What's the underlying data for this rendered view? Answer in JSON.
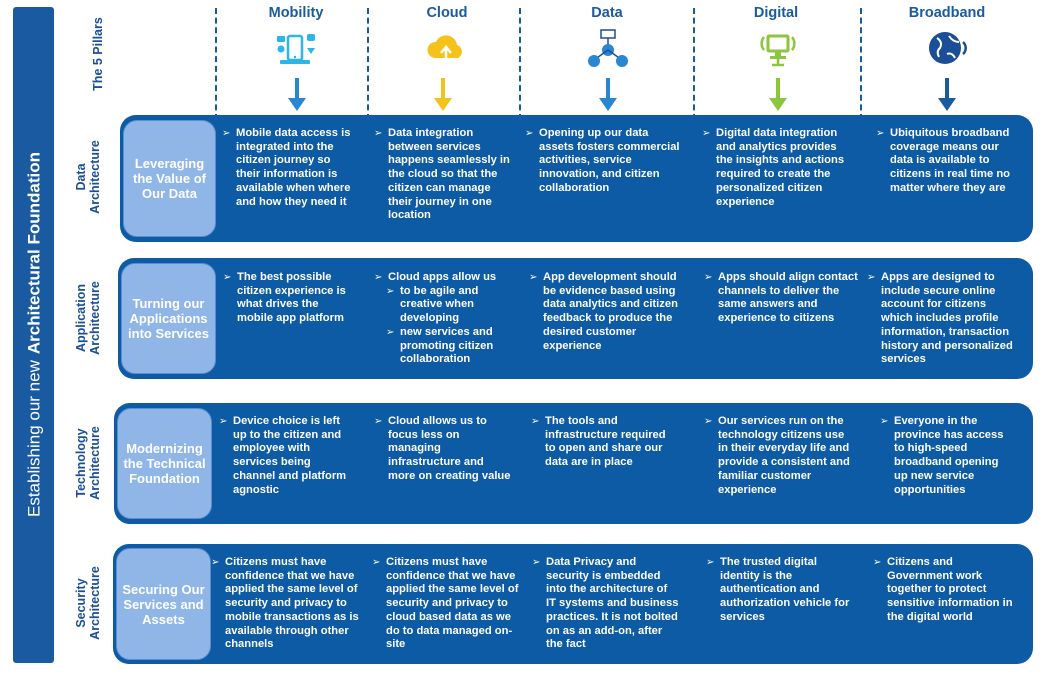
{
  "side_banner": {
    "prefix": "Establishing our new",
    "emphasis": "Architectural Foundation"
  },
  "pillars_label": "The 5 Pillars",
  "pillars": [
    {
      "title": "Mobility",
      "icon": "mobile-devices-icon",
      "arrow_color": "#2a86d0"
    },
    {
      "title": "Cloud",
      "icon": "cloud-upload-icon",
      "arrow_color": "#f2c31a"
    },
    {
      "title": "Data",
      "icon": "data-network-icon",
      "arrow_color": "#2a86d0"
    },
    {
      "title": "Digital",
      "icon": "digital-monitor-icon",
      "arrow_color": "#8cc63f"
    },
    {
      "title": "Broadband",
      "icon": "globe-signal-icon",
      "arrow_color": "#1a5aa0"
    }
  ],
  "rows": [
    {
      "label": [
        "Data",
        "Architecture"
      ],
      "pill": "Leveraging the Value of Our Data",
      "cells": [
        [
          [
            "Mobile data access is",
            "integrated into the",
            "citizen journey so",
            "their information  is",
            "available when where",
            "and how they need it"
          ]
        ],
        [
          [
            "Data integration",
            "between services",
            "happens seamlessly in",
            "the cloud so that the",
            "citizen can manage",
            "their journey in one",
            "location"
          ]
        ],
        [
          [
            "Opening up our data",
            "assets fosters commercial",
            "activities, service",
            "innovation, and citizen",
            "collaboration"
          ]
        ],
        [
          [
            "Digital data integration",
            " and  analytics provides",
            "the insights and actions",
            "required to create the",
            "personalized citizen",
            "experience"
          ]
        ],
        [
          [
            "Ubiquitous broadband",
            "coverage means our",
            "data is available to",
            "citizens in real time no",
            "matter where they are"
          ]
        ]
      ]
    },
    {
      "label": [
        "Application",
        "Architecture"
      ],
      "pill": "Turning our Applications into Services",
      "cells": [
        [
          [
            "The best possible",
            "citizen experience is",
            "what drives the",
            "mobile app platform"
          ]
        ],
        [
          [
            "Cloud apps allow us"
          ],
          [
            "to be agile and",
            "creative when",
            "developing"
          ],
          [
            "new services and",
            "promoting citizen",
            "collaboration"
          ]
        ],
        [
          [
            "App development should",
            "be evidence based using",
            "data analytics and citizen",
            "feedback to produce the",
            "desired customer",
            "experience"
          ]
        ],
        [
          [
            "Apps should align contact",
            "channels to deliver the",
            "same answers and",
            "experience to citizens"
          ]
        ],
        [
          [
            "Apps are designed  to",
            "include secure online",
            "account for citizens",
            "which includes profile",
            "information, transaction",
            "history and personalized",
            "services"
          ]
        ]
      ]
    },
    {
      "label": [
        "Technology",
        "Architecture"
      ],
      "pill": "Modernizing the Technical Foundation",
      "cells": [
        [
          [
            "Device choice is left",
            "up to the citizen and",
            "employee with",
            "services being",
            "channel and platform",
            "agnostic"
          ]
        ],
        [
          [
            "Cloud allows us to",
            "focus less on",
            "managing",
            "infrastructure and",
            "more on creating value"
          ]
        ],
        [
          [
            "The tools and",
            "infrastructure required",
            "to open and share our",
            "data are in place"
          ]
        ],
        [
          [
            "Our services run on the",
            "technology citizens use",
            "in their everyday life and",
            "provide a consistent and",
            "familiar customer",
            "experience"
          ]
        ],
        [
          [
            "Everyone in the",
            "province has access",
            "to high-speed",
            "broadband opening",
            "up new service",
            "opportunities"
          ]
        ]
      ]
    },
    {
      "label": [
        "Security",
        "Architecture"
      ],
      "pill": "Securing Our Services and Assets",
      "cells": [
        [
          [
            "Citizens must have",
            "confidence that we have",
            "applied the same level of",
            "security and privacy to",
            "mobile transactions as is",
            "available through other",
            "channels"
          ]
        ],
        [
          [
            "Citizens must have",
            "confidence that we have",
            "applied the same level of",
            "security and privacy to",
            "cloud based data as we",
            "do to data managed on-",
            "site"
          ]
        ],
        [
          [
            "Data Privacy and",
            "security is embedded",
            "into the architecture of",
            "IT systems and business",
            "practices. It is not bolted",
            "on as an add-on, after",
            "the fact"
          ]
        ],
        [
          [
            "The trusted digital",
            "identity is the",
            "authentication and",
            "authorization vehicle for",
            "services"
          ]
        ],
        [
          [
            "Citizens and",
            "Government work",
            "together to protect",
            "sensitive information in",
            "the digital world"
          ]
        ]
      ]
    }
  ]
}
